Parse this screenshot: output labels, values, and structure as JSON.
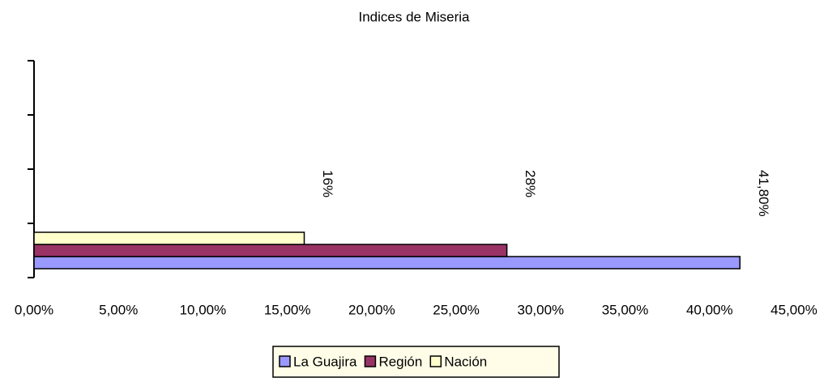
{
  "chart_data": {
    "type": "bar",
    "orientation": "horizontal",
    "title": "Indices de Miseria",
    "categories": [
      null
    ],
    "series": [
      {
        "name": "La Guajira",
        "color": "#9999ff",
        "values": [
          41.8
        ],
        "value_labels": [
          "41,80%"
        ]
      },
      {
        "name": "Región",
        "color": "#993366",
        "values": [
          28
        ],
        "value_labels": [
          "28%"
        ]
      },
      {
        "name": "Nación",
        "color": "#ffffcc",
        "values": [
          16
        ],
        "value_labels": [
          "16%"
        ]
      }
    ],
    "xlim": [
      0,
      45
    ],
    "xticks": [
      {
        "value": 0,
        "label": "0,00%"
      },
      {
        "value": 5,
        "label": "5,00%"
      },
      {
        "value": 10,
        "label": "10,00%"
      },
      {
        "value": 15,
        "label": "15,00%"
      },
      {
        "value": 20,
        "label": "20,00%"
      },
      {
        "value": 25,
        "label": "25,00%"
      },
      {
        "value": 30,
        "label": "30,00%"
      },
      {
        "value": 35,
        "label": "35,00%"
      },
      {
        "value": 40,
        "label": "40,00%"
      },
      {
        "value": 45,
        "label": "45,00%"
      }
    ],
    "legend": "bottom"
  }
}
